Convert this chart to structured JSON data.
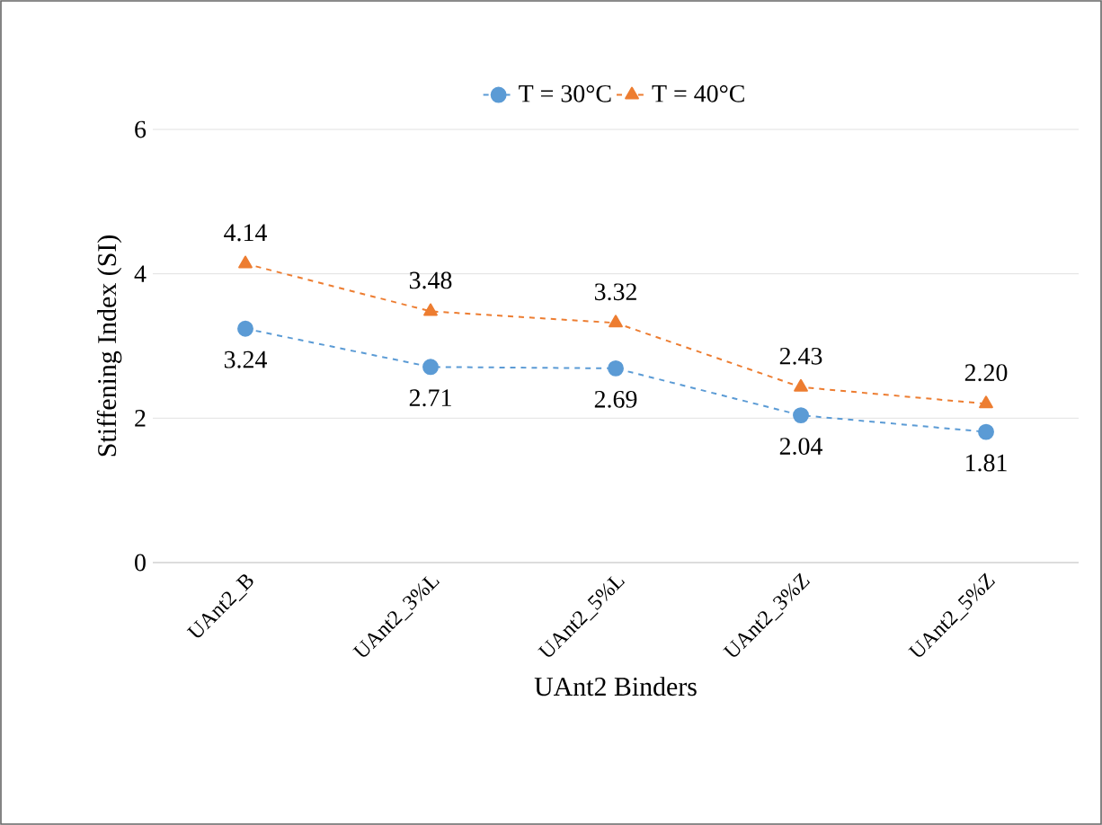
{
  "chart_data": {
    "type": "line",
    "xlabel": "UAnt2 Binders",
    "ylabel": "Stiffening Index (SI)",
    "categories": [
      "UAnt2_B",
      "UAnt2_3%L",
      "UAnt2_5%L",
      "UAnt2_3%Z",
      "UAnt2_5%Z"
    ],
    "series": [
      {
        "name": "T = 30°C",
        "color": "#5b9bd5",
        "marker": "circle",
        "values": [
          3.24,
          2.71,
          2.69,
          2.04,
          1.81
        ],
        "value_labels": [
          "3.24",
          "2.71",
          "2.69",
          "2.04",
          "1.81"
        ]
      },
      {
        "name": "T = 40°C",
        "color": "#ed7d31",
        "marker": "triangle",
        "values": [
          4.14,
          3.48,
          3.32,
          2.43,
          2.2
        ],
        "value_labels": [
          "4.14",
          "3.48",
          "3.32",
          "2.43",
          "2.20"
        ]
      }
    ],
    "ylim": [
      0,
      6
    ],
    "yticks": [
      0,
      2,
      4,
      6
    ],
    "grid": "y",
    "legend": "top",
    "line_style": "dashed"
  }
}
